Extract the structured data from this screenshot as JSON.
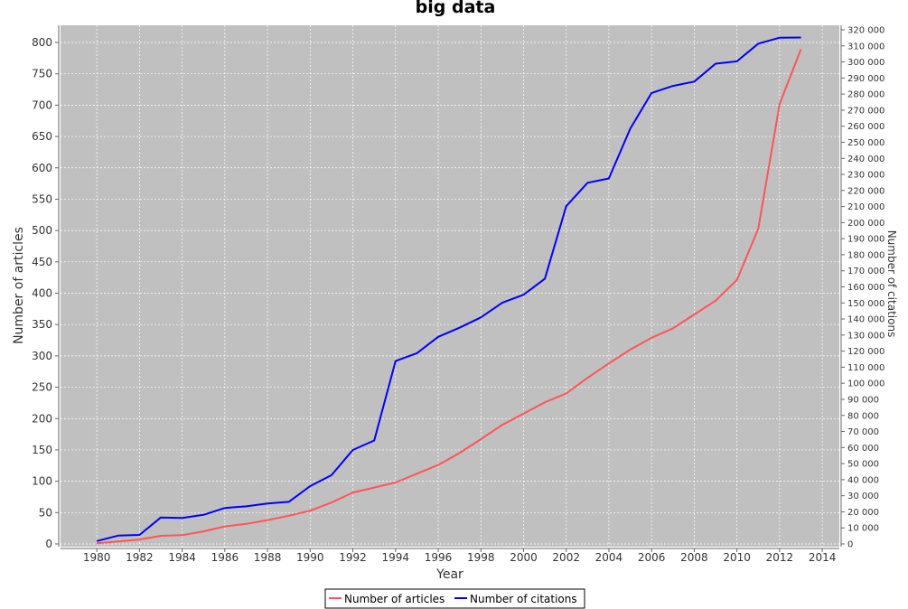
{
  "chart_data": {
    "type": "line",
    "title": "big data",
    "xlabel": "Year",
    "ylabel": "Number of articles",
    "y2label": "Number of citations",
    "xlim": [
      1978.3,
      2014.8
    ],
    "ylim": [
      0,
      800
    ],
    "y2lim": [
      0,
      320000
    ],
    "xticks": [
      "1980",
      "1982",
      "1984",
      "1986",
      "1988",
      "1990",
      "1992",
      "1994",
      "1996",
      "1998",
      "2000",
      "2002",
      "2004",
      "2006",
      "2008",
      "2010",
      "2012",
      "2014"
    ],
    "yticks": [
      "0",
      "50",
      "100",
      "150",
      "200",
      "250",
      "300",
      "350",
      "400",
      "450",
      "500",
      "550",
      "600",
      "650",
      "700",
      "750",
      "800"
    ],
    "y2ticks": [
      "0",
      "10 000",
      "20 000",
      "30 000",
      "40 000",
      "50 000",
      "60 000",
      "70 000",
      "80 000",
      "90 000",
      "100 000",
      "110 000",
      "120 000",
      "130 000",
      "140 000",
      "150 000",
      "160 000",
      "170 000",
      "180 000",
      "190 000",
      "200 000",
      "210 000",
      "220 000",
      "230 000",
      "240 000",
      "250 000",
      "260 000",
      "270 000",
      "280 000",
      "290 000",
      "300 000",
      "310 000",
      "320 000"
    ],
    "grid": true,
    "legend_position": "bottom",
    "x": [
      1980,
      1981,
      1982,
      1983,
      1984,
      1985,
      1986,
      1987,
      1988,
      1989,
      1990,
      1991,
      1992,
      1993,
      1994,
      1995,
      1996,
      1997,
      1998,
      1999,
      2000,
      2001,
      2002,
      2003,
      2004,
      2005,
      2006,
      2007,
      2008,
      2009,
      2010,
      2011,
      2012,
      2013
    ],
    "series": [
      {
        "name": "Number of articles",
        "axis": "left",
        "color": "#ff5555",
        "values": [
          1,
          4,
          7,
          13,
          14,
          20,
          28,
          32,
          38,
          45,
          53,
          66,
          82,
          90,
          98,
          112,
          126,
          145,
          167,
          190,
          208,
          226,
          240,
          265,
          288,
          310,
          329,
          344,
          366,
          388,
          421,
          503,
          702,
          789
        ]
      },
      {
        "name": "Number of citations",
        "axis": "right",
        "color": "#0000ff",
        "values": [
          1800,
          5200,
          5600,
          16500,
          16200,
          18100,
          22400,
          23400,
          25200,
          26200,
          36000,
          42800,
          58500,
          64400,
          113800,
          118700,
          128900,
          134600,
          141000,
          150100,
          155100,
          165100,
          210200,
          224800,
          227500,
          258500,
          280700,
          285100,
          287800,
          298900,
          300400,
          311400,
          315100,
          315200
        ]
      }
    ]
  }
}
